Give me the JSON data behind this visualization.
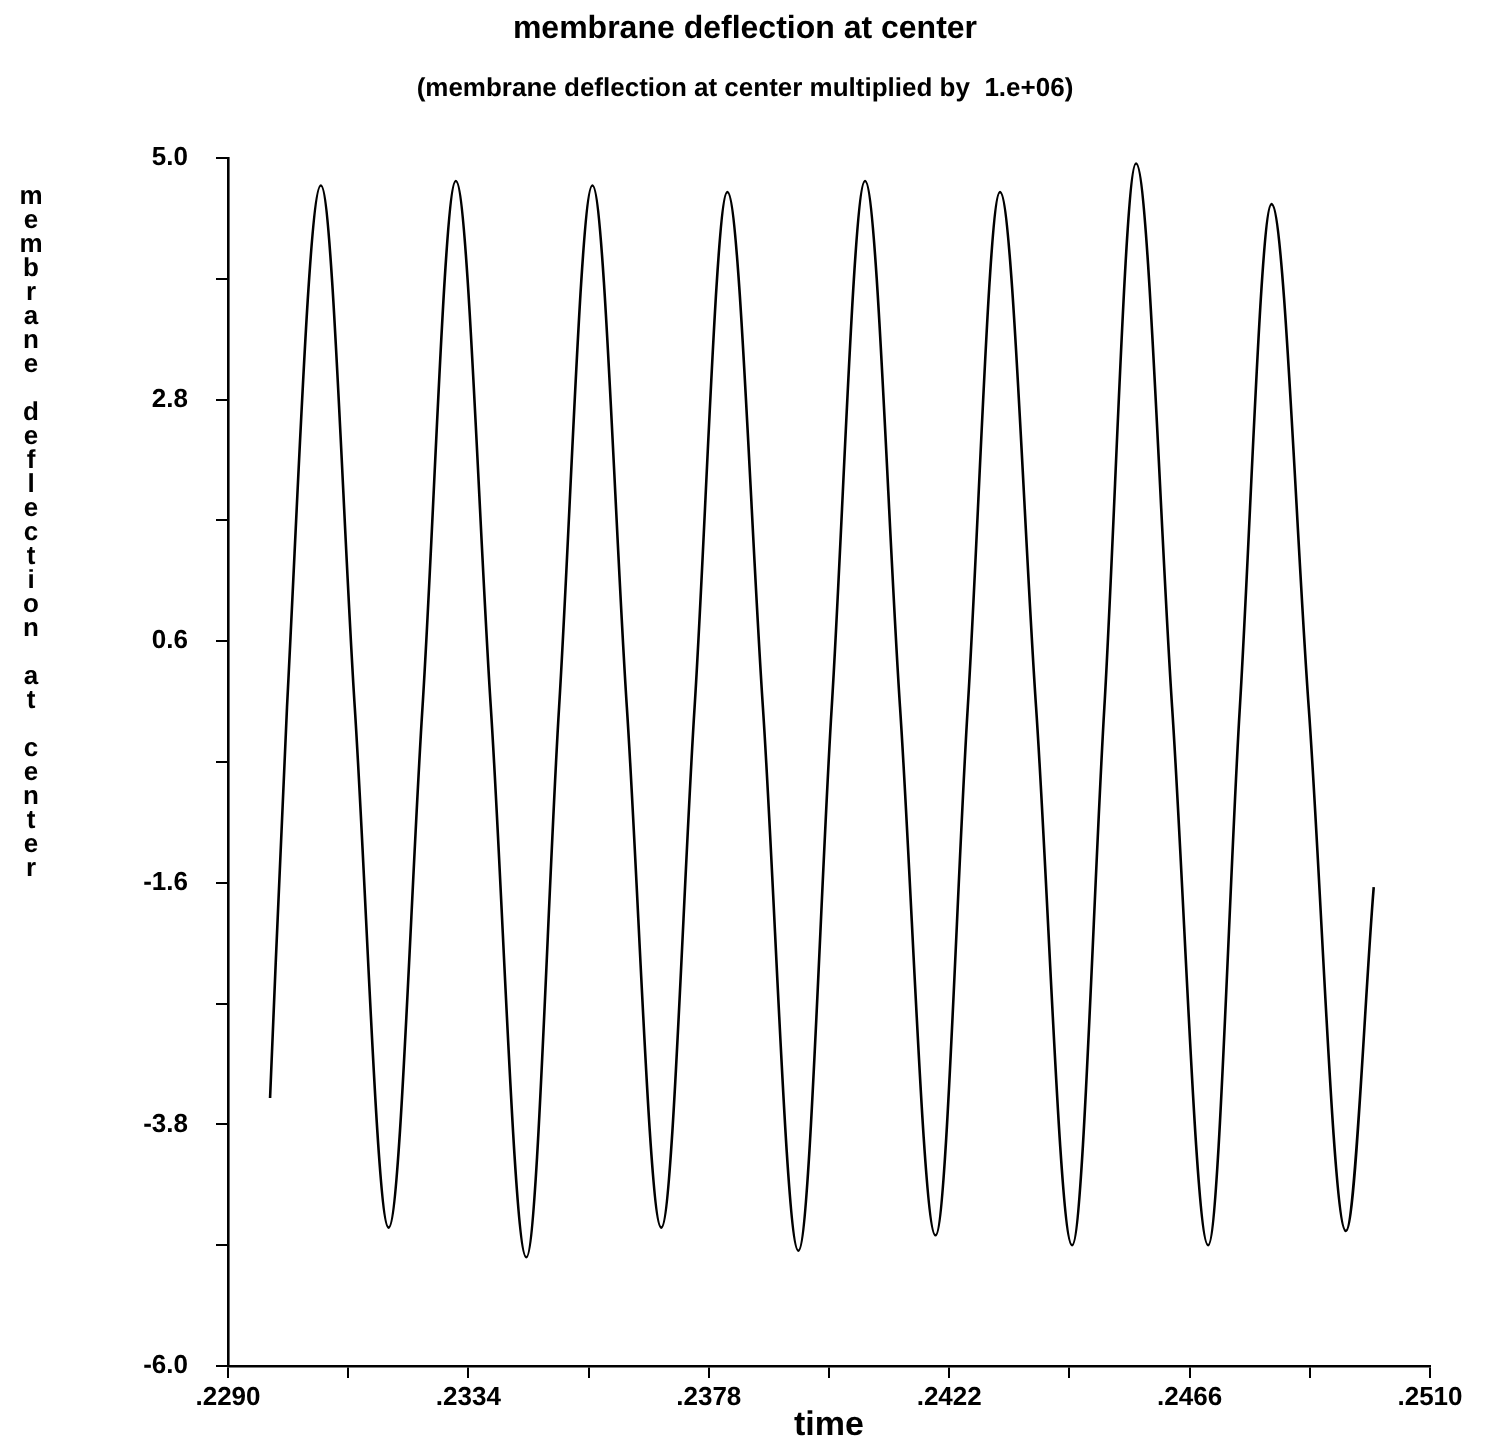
{
  "chart_data": {
    "type": "line",
    "title": "membrane deflection at center",
    "subtitle": "(membrane deflection at center multiplied by  1.e+06)",
    "xlabel": "time",
    "ylabel": "membrane deflection at center",
    "x": [
      0.22977,
      0.23008,
      0.2307,
      0.23132,
      0.23194,
      0.23256,
      0.23317,
      0.23381,
      0.23446,
      0.23506,
      0.23567,
      0.2363,
      0.23693,
      0.23754,
      0.23814,
      0.23879,
      0.23944,
      0.24005,
      0.24066,
      0.2413,
      0.24195,
      0.24254,
      0.24313,
      0.24379,
      0.24445,
      0.24504,
      0.24562,
      0.24628,
      0.24694,
      0.24752,
      0.2481,
      0.24878,
      0.24946,
      0.24997
    ],
    "series": [
      {
        "color": "#000000",
        "values": [
          -3.56,
          0,
          4.75,
          0,
          -4.74,
          0,
          4.79,
          0,
          -5.01,
          0,
          4.75,
          0,
          -4.74,
          0,
          4.69,
          0,
          -4.95,
          0,
          4.79,
          0,
          -4.81,
          0,
          4.69,
          0,
          -4.9,
          0,
          4.95,
          0,
          -4.9,
          0,
          4.58,
          0,
          -4.77,
          -1.64
        ]
      }
    ],
    "xlim": [
      0.229,
      0.251
    ],
    "xticks": [
      {
        "value": 0.229,
        "label": ".2290"
      },
      {
        "value": 0.2312,
        "label": null
      },
      {
        "value": 0.2334,
        "label": ".2334"
      },
      {
        "value": 0.2356,
        "label": null
      },
      {
        "value": 0.2378,
        "label": ".2378"
      },
      {
        "value": 0.24,
        "label": null
      },
      {
        "value": 0.2422,
        "label": ".2422"
      },
      {
        "value": 0.2444,
        "label": null
      },
      {
        "value": 0.2466,
        "label": ".2466"
      },
      {
        "value": 0.2488,
        "label": null
      },
      {
        "value": 0.251,
        "label": ".2510"
      }
    ],
    "ylim": [
      -6,
      5
    ],
    "yticks": [
      {
        "value": 5,
        "label": "5.0"
      },
      {
        "value": 3.9,
        "label": null
      },
      {
        "value": 2.8,
        "label": "2.8"
      },
      {
        "value": 1.7,
        "label": null
      },
      {
        "value": 0.6,
        "label": "0.6"
      },
      {
        "value": -0.5,
        "label": null
      },
      {
        "value": -1.6,
        "label": "-1.6"
      },
      {
        "value": -2.7,
        "label": null
      },
      {
        "value": -3.8,
        "label": "-3.8"
      },
      {
        "value": -4.9,
        "label": null
      },
      {
        "value": -6,
        "label": "-6.0"
      }
    ],
    "marker": "none",
    "line_style": "solid"
  }
}
